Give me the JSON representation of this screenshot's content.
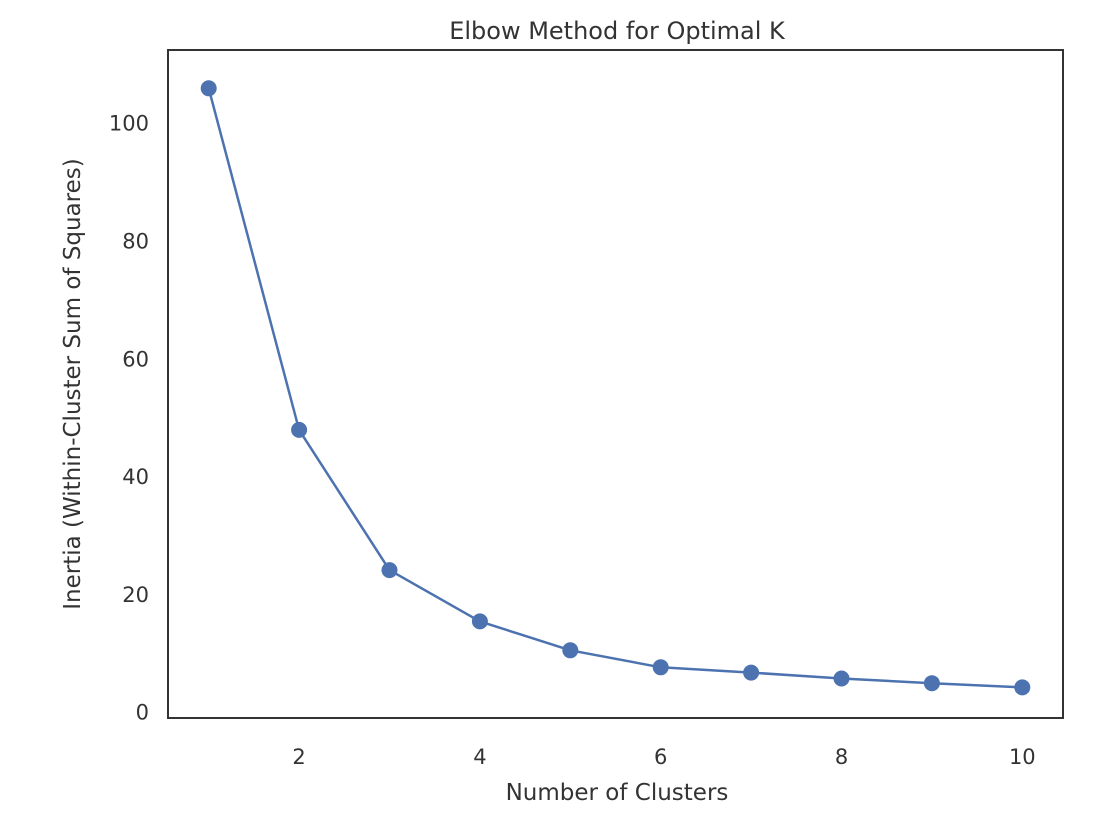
{
  "chart_data": {
    "type": "line",
    "title": "Elbow Method for Optimal K",
    "xlabel": "Number of Clusters",
    "ylabel": "Inertia (Within-Cluster Sum of Squares)",
    "x": [
      1,
      2,
      3,
      4,
      5,
      6,
      7,
      8,
      9,
      10
    ],
    "series": [
      {
        "values": [
          106,
          48,
          24.2,
          15.5,
          10.6,
          7.7,
          6.8,
          5.8,
          5.0,
          4.3
        ],
        "color": "#4c72b0",
        "marker": "circle"
      }
    ],
    "xticks": [
      2,
      4,
      6,
      8,
      10
    ],
    "yticks": [
      0,
      20,
      40,
      60,
      80,
      100
    ],
    "xlim": [
      0.55,
      10.45
    ],
    "ylim": [
      -0.9,
      112.5
    ],
    "grid": false,
    "legend": "none"
  }
}
